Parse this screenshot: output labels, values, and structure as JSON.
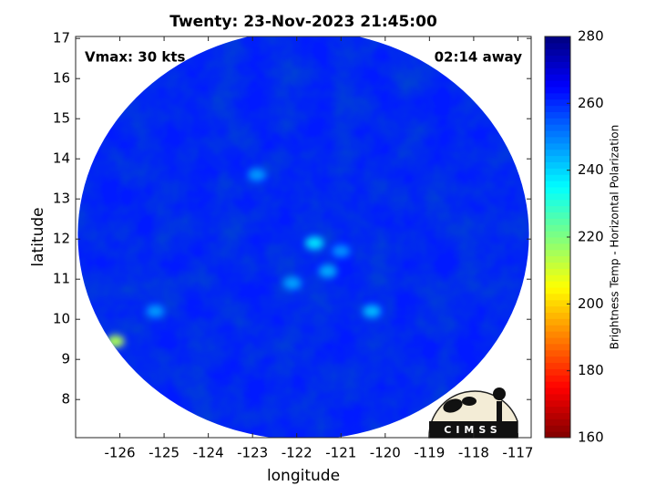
{
  "chart_data": {
    "type": "swath-map",
    "title": "Twenty: 23-Nov-2023 21:45:00",
    "annotations": [
      "Vmax: 30 kts",
      "02:14 away"
    ],
    "xlabel": "longitude",
    "ylabel": "latitude",
    "xlim": [
      -127,
      -116.7
    ],
    "xticks": [
      -126,
      -125,
      -124,
      -123,
      -122,
      -121,
      -120,
      -119,
      -118,
      -117
    ],
    "ylim": [
      7.05,
      17.05
    ],
    "yticks": [
      8,
      9,
      10,
      11,
      12,
      13,
      14,
      15,
      16,
      17
    ],
    "grid": false,
    "colormap": "jet_r",
    "clim": [
      160,
      280
    ],
    "cticks": [
      160,
      180,
      200,
      220,
      240,
      260,
      280
    ],
    "colorbar_label": "Brightness Temp - Horizontal Polarization",
    "swath": {
      "lon": -121.85,
      "lat": 12.1,
      "radius": 5.1,
      "value": 262
    },
    "features": {
      "lon": [
        -126.1,
        -121.6,
        -121.3,
        -120.3,
        -122.1,
        -125.2,
        -122.9,
        -121.0
      ],
      "lat": [
        9.45,
        11.9,
        11.2,
        10.2,
        10.9,
        10.2,
        13.6,
        11.7
      ],
      "values": [
        215,
        238,
        245,
        243,
        246,
        247,
        247,
        248
      ]
    },
    "logo": "CIMSS"
  }
}
